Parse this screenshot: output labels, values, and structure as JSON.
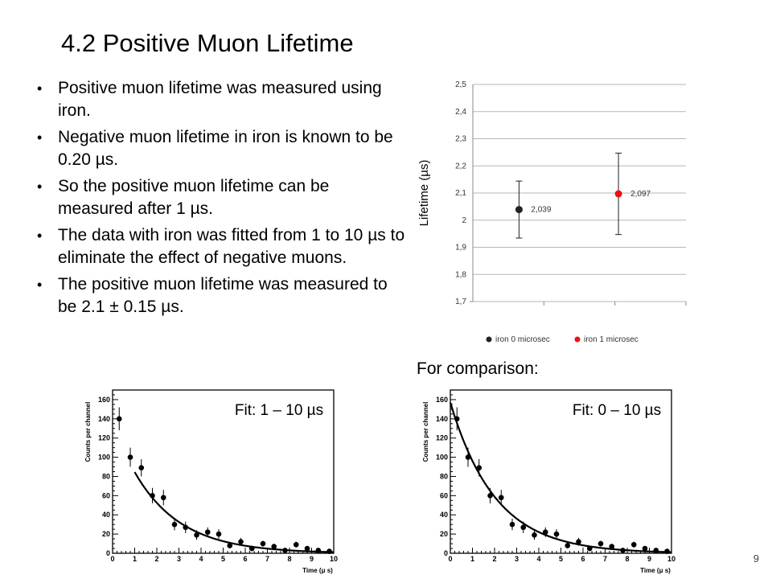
{
  "slide": {
    "title": "4.2  Positive Muon Lifetime",
    "bullets": [
      "Positive muon lifetime was measured using iron.",
      "Negative muon lifetime in iron is known to be 0.20 µs.",
      "So the positive muon lifetime can be measured after 1 µs.",
      "The data with iron was fitted from 1 to 10 µs to eliminate the effect of negative muons.",
      "The positive muon lifetime was measured to be 2.1 ± 0.15 µs."
    ],
    "comparison_label": "For comparison:",
    "page_number": "9"
  },
  "chart_data": [
    {
      "type": "scatter",
      "ylabel": "Lifetime (µs)",
      "ylim": [
        1.7,
        2.5
      ],
      "yticks": [
        "1,7",
        "1,8",
        "1,9",
        "2",
        "2,1",
        "2,2",
        "2,3",
        "2,4",
        "2,5"
      ],
      "grid": true,
      "legend_position": "bottom",
      "series": [
        {
          "name": "iron 0 microsec",
          "color": "#222222",
          "x": 1,
          "y": 2.039,
          "yerr": 0.105,
          "label": "2,039"
        },
        {
          "name": "iron 1 microsec",
          "color": "#ee1111",
          "x": 2,
          "y": 2.097,
          "yerr": 0.15,
          "label": "2,097"
        }
      ]
    },
    {
      "type": "scatter",
      "annotation": "Fit: 1 – 10 µs",
      "xlabel": "Time  (μ s)",
      "ylabel": "Counts per channel",
      "xlim": [
        0,
        10
      ],
      "ylim": [
        0,
        170
      ],
      "xticks": [
        "0",
        "1",
        "2",
        "3",
        "4",
        "5",
        "6",
        "7",
        "8",
        "9",
        "10"
      ],
      "yticks": [
        "0",
        "20",
        "40",
        "60",
        "80",
        "100",
        "120",
        "140",
        "160"
      ],
      "fit_start": 1,
      "fit_curve": {
        "A": 136,
        "tau": 2.1
      },
      "points": [
        {
          "x": 0.3,
          "y": 140,
          "e": 12
        },
        {
          "x": 0.8,
          "y": 100,
          "e": 10
        },
        {
          "x": 1.3,
          "y": 89,
          "e": 9
        },
        {
          "x": 1.8,
          "y": 60,
          "e": 8
        },
        {
          "x": 2.3,
          "y": 58,
          "e": 8
        },
        {
          "x": 2.8,
          "y": 30,
          "e": 6
        },
        {
          "x": 3.3,
          "y": 27,
          "e": 6
        },
        {
          "x": 3.8,
          "y": 19,
          "e": 5
        },
        {
          "x": 4.3,
          "y": 22,
          "e": 5
        },
        {
          "x": 4.8,
          "y": 20,
          "e": 5
        },
        {
          "x": 5.3,
          "y": 8,
          "e": 3
        },
        {
          "x": 5.8,
          "y": 12,
          "e": 4
        },
        {
          "x": 6.3,
          "y": 5,
          "e": 3
        },
        {
          "x": 6.8,
          "y": 10,
          "e": 3
        },
        {
          "x": 7.3,
          "y": 7,
          "e": 3
        },
        {
          "x": 7.8,
          "y": 3,
          "e": 2
        },
        {
          "x": 8.3,
          "y": 9,
          "e": 3
        },
        {
          "x": 8.8,
          "y": 5,
          "e": 2
        },
        {
          "x": 9.3,
          "y": 3,
          "e": 2
        },
        {
          "x": 9.8,
          "y": 2,
          "e": 2
        }
      ]
    },
    {
      "type": "scatter",
      "annotation": "Fit: 0 – 10 µs",
      "xlabel": "Time  (μ s)",
      "ylabel": "Counts per channel",
      "xlim": [
        0,
        10
      ],
      "ylim": [
        0,
        170
      ],
      "xticks": [
        "0",
        "1",
        "2",
        "3",
        "4",
        "5",
        "6",
        "7",
        "8",
        "9",
        "10"
      ],
      "yticks": [
        "0",
        "20",
        "40",
        "60",
        "80",
        "100",
        "120",
        "140",
        "160"
      ],
      "fit_start": 0,
      "fit_curve": {
        "A": 157,
        "tau": 2.04
      },
      "points": [
        {
          "x": 0.3,
          "y": 140,
          "e": 12
        },
        {
          "x": 0.8,
          "y": 100,
          "e": 10
        },
        {
          "x": 1.3,
          "y": 89,
          "e": 9
        },
        {
          "x": 1.8,
          "y": 60,
          "e": 8
        },
        {
          "x": 2.3,
          "y": 58,
          "e": 8
        },
        {
          "x": 2.8,
          "y": 30,
          "e": 6
        },
        {
          "x": 3.3,
          "y": 27,
          "e": 6
        },
        {
          "x": 3.8,
          "y": 19,
          "e": 5
        },
        {
          "x": 4.3,
          "y": 22,
          "e": 5
        },
        {
          "x": 4.8,
          "y": 20,
          "e": 5
        },
        {
          "x": 5.3,
          "y": 8,
          "e": 3
        },
        {
          "x": 5.8,
          "y": 12,
          "e": 4
        },
        {
          "x": 6.3,
          "y": 5,
          "e": 3
        },
        {
          "x": 6.8,
          "y": 10,
          "e": 3
        },
        {
          "x": 7.3,
          "y": 7,
          "e": 3
        },
        {
          "x": 7.8,
          "y": 3,
          "e": 2
        },
        {
          "x": 8.3,
          "y": 9,
          "e": 3
        },
        {
          "x": 8.8,
          "y": 5,
          "e": 2
        },
        {
          "x": 9.3,
          "y": 3,
          "e": 2
        },
        {
          "x": 9.8,
          "y": 2,
          "e": 2
        }
      ]
    }
  ]
}
